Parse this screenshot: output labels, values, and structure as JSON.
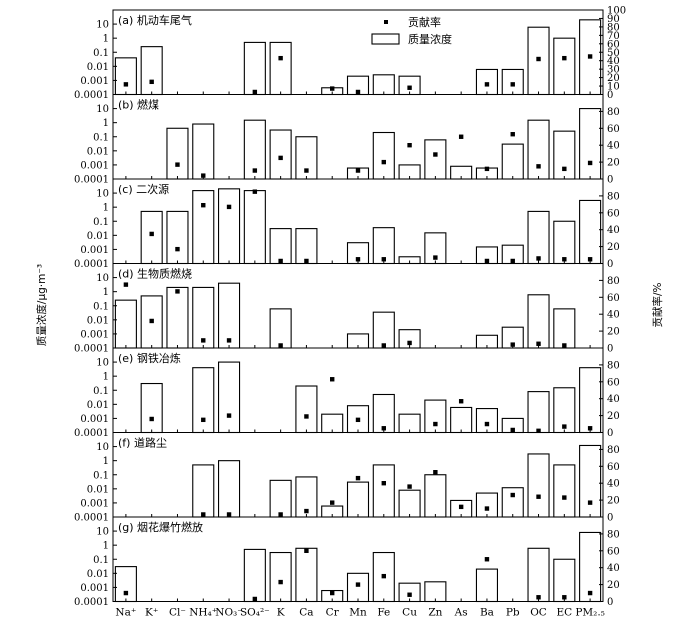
{
  "chart_data": {
    "type": "bar",
    "categories": [
      "Na⁺",
      "K⁺",
      "Cl⁻",
      "NH₄⁺",
      "NO₃⁻",
      "SO₄²⁻",
      "K",
      "Ca",
      "Cr",
      "Mn",
      "Fe",
      "Cu",
      "Zn",
      "As",
      "Ba",
      "Pb",
      "OC",
      "EC",
      "PM₂.₅"
    ],
    "left_axis": {
      "label": "质量浓度/μg·m⁻³",
      "scale": "log",
      "ylim": [
        0.0001,
        100
      ],
      "tick_labels": [
        "0.0001",
        "0.001",
        "0.01",
        "0.1",
        "1",
        "10"
      ]
    },
    "right_axis": {
      "label": "贡献率/%",
      "scale": "linear",
      "ylim": [
        0,
        100
      ],
      "tick_values": [
        0,
        20,
        40,
        60,
        80,
        100
      ]
    },
    "legend": {
      "position": "top-center",
      "items": [
        {
          "label": "贡献率",
          "marker": "square"
        },
        {
          "label": "质量浓度",
          "marker": "open-bar"
        }
      ]
    },
    "panels": [
      {
        "title": "(a) 机动车尾气",
        "right_ticks": [
          0,
          10,
          20,
          30,
          40,
          50,
          60,
          70,
          80,
          90,
          100
        ],
        "mass": [
          0.04,
          0.25,
          null,
          null,
          null,
          0.5,
          0.5,
          null,
          0.0003,
          0.002,
          0.0025,
          0.002,
          null,
          null,
          0.006,
          0.006,
          6,
          1,
          20
        ],
        "contribution": [
          12,
          15,
          null,
          null,
          null,
          3,
          43,
          null,
          7,
          3,
          null,
          8,
          null,
          null,
          12,
          12,
          42,
          43,
          45
        ]
      },
      {
        "title": "(b) 燃煤",
        "right_ticks": [
          0,
          20,
          40,
          60,
          80
        ],
        "mass": [
          null,
          null,
          0.4,
          0.8,
          null,
          1.5,
          0.3,
          0.1,
          null,
          0.0006,
          0.2,
          0.001,
          0.06,
          0.0008,
          0.0006,
          0.03,
          1.5,
          0.25,
          10
        ],
        "contribution": [
          null,
          null,
          17,
          4,
          null,
          10,
          25,
          10,
          null,
          10,
          20,
          40,
          29,
          50,
          12,
          53,
          15,
          12,
          19
        ]
      },
      {
        "title": "(c) 二次源",
        "right_ticks": [
          0,
          20,
          40,
          60,
          80
        ],
        "mass": [
          null,
          0.5,
          0.5,
          15,
          20,
          15,
          0.03,
          0.03,
          null,
          0.003,
          0.035,
          0.0003,
          0.015,
          null,
          0.0015,
          0.002,
          0.5,
          0.1,
          3
        ],
        "contribution": [
          null,
          35,
          17,
          69,
          67,
          85,
          3,
          3,
          null,
          5,
          5,
          null,
          7,
          null,
          3,
          3,
          6,
          5,
          5
        ]
      },
      {
        "title": "(d) 生物质燃烧",
        "right_ticks": [
          0,
          20,
          40,
          60,
          80
        ],
        "mass": [
          0.25,
          0.5,
          2,
          2,
          4,
          null,
          0.06,
          null,
          null,
          0.001,
          0.035,
          0.002,
          null,
          null,
          0.0008,
          0.003,
          0.6,
          0.06,
          null
        ],
        "contribution": [
          75,
          32,
          67,
          9,
          9,
          null,
          3,
          null,
          null,
          null,
          3,
          6,
          null,
          null,
          null,
          4,
          5,
          3,
          null
        ]
      },
      {
        "title": "(e) 钢铁冶炼",
        "right_ticks": [
          0,
          20,
          40,
          60,
          80
        ],
        "mass": [
          null,
          0.3,
          null,
          4,
          10,
          null,
          null,
          0.2,
          0.002,
          0.008,
          0.05,
          0.002,
          0.02,
          0.006,
          0.005,
          0.001,
          0.08,
          0.15,
          4
        ],
        "contribution": [
          null,
          16,
          null,
          15,
          20,
          null,
          null,
          19,
          63,
          15,
          5,
          null,
          10,
          37,
          10,
          3,
          2,
          7,
          5
        ]
      },
      {
        "title": "(f) 道路尘",
        "right_ticks": [
          0,
          20,
          40,
          60,
          80
        ],
        "mass": [
          null,
          null,
          null,
          0.5,
          1,
          null,
          0.04,
          0.07,
          0.0006,
          0.03,
          0.5,
          0.008,
          0.1,
          0.0015,
          0.005,
          0.012,
          3,
          0.5,
          12
        ],
        "contribution": [
          null,
          null,
          null,
          3,
          3,
          null,
          3,
          7,
          17,
          46,
          40,
          36,
          53,
          12,
          10,
          26,
          24,
          23,
          17
        ]
      },
      {
        "title": "(g) 烟花爆竹燃放",
        "right_ticks": [
          0,
          20,
          40,
          60,
          80
        ],
        "mass": [
          0.03,
          null,
          null,
          null,
          null,
          0.5,
          0.3,
          0.6,
          0.0006,
          0.01,
          0.3,
          0.002,
          0.0025,
          null,
          0.02,
          null,
          0.6,
          0.1,
          8
        ],
        "contribution": [
          10,
          null,
          null,
          null,
          null,
          3,
          23,
          60,
          10,
          20,
          30,
          8,
          null,
          null,
          50,
          null,
          5,
          5,
          10
        ]
      }
    ]
  }
}
